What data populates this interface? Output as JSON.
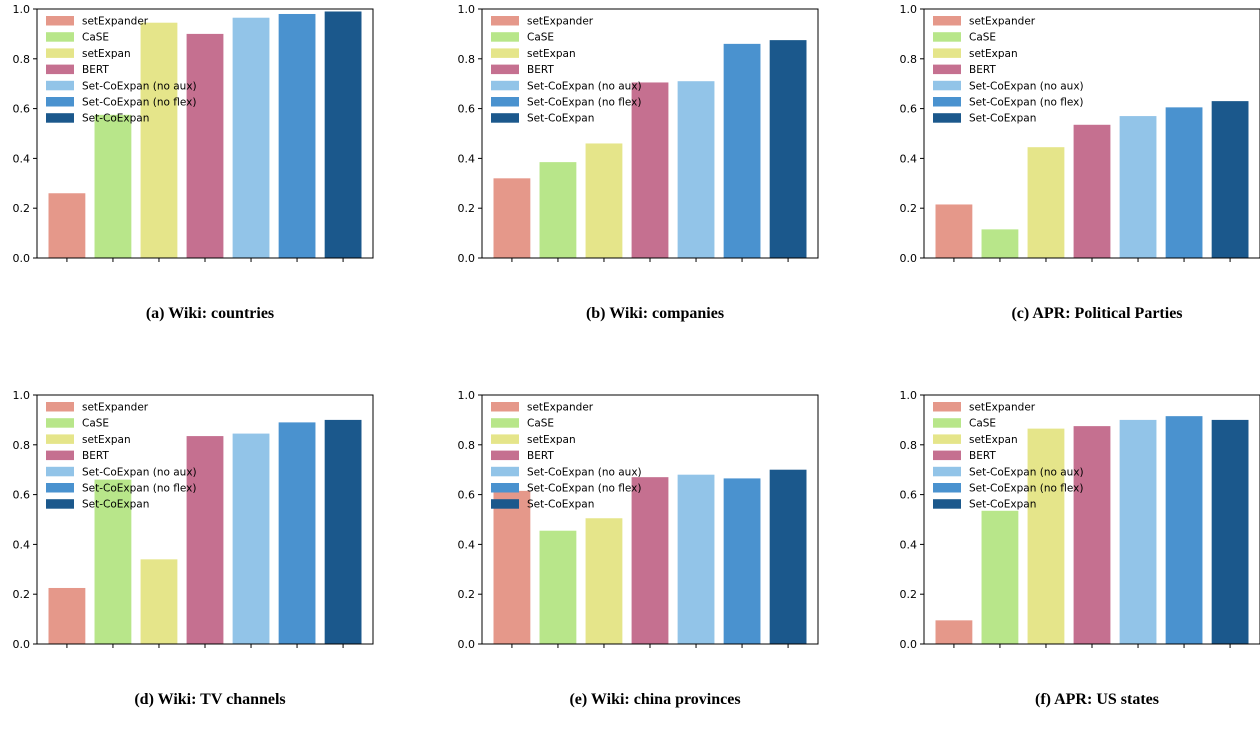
{
  "figure": {
    "series": [
      "setExpander",
      "CaSE",
      "setExpan",
      "BERT",
      "Set-CoExpan (no aux)",
      "Set-CoExpan (no flex)",
      "Set-CoExpan"
    ],
    "colors": [
      "#e5988a",
      "#b8e68a",
      "#e5e58a",
      "#c57090",
      "#92c4e8",
      "#4a92cf",
      "#1b588c"
    ]
  },
  "chart_data": [
    {
      "type": "bar",
      "caption": "(a) Wiki: countries",
      "values": [
        0.26,
        0.575,
        0.945,
        0.9,
        0.965,
        0.98,
        0.99
      ],
      "ylim": [
        0,
        1.0
      ],
      "yticks": [
        "0.0",
        "0.2",
        "0.4",
        "0.6",
        "0.8",
        "1.0"
      ],
      "legend": "top-left",
      "grid": false
    },
    {
      "type": "bar",
      "caption": "(b) Wiki: companies",
      "values": [
        0.32,
        0.385,
        0.46,
        0.705,
        0.71,
        0.86,
        0.875
      ],
      "ylim": [
        0,
        1.0
      ],
      "yticks": [
        "0.0",
        "0.2",
        "0.4",
        "0.6",
        "0.8",
        "1.0"
      ],
      "legend": "top-left",
      "grid": false
    },
    {
      "type": "bar",
      "caption": "(c) APR: Political Parties",
      "values": [
        0.215,
        0.115,
        0.445,
        0.535,
        0.57,
        0.605,
        0.63
      ],
      "ylim": [
        0,
        1.0
      ],
      "yticks": [
        "0.0",
        "0.2",
        "0.4",
        "0.6",
        "0.8",
        "1.0"
      ],
      "legend": "top-left",
      "grid": false
    },
    {
      "type": "bar",
      "caption": "(d) Wiki: TV channels",
      "values": [
        0.225,
        0.66,
        0.34,
        0.835,
        0.845,
        0.89,
        0.9
      ],
      "ylim": [
        0,
        1.0
      ],
      "yticks": [
        "0.0",
        "0.2",
        "0.4",
        "0.6",
        "0.8",
        "1.0"
      ],
      "legend": "top-left",
      "grid": false
    },
    {
      "type": "bar",
      "caption": "(e) Wiki: china provinces",
      "values": [
        0.615,
        0.455,
        0.505,
        0.67,
        0.68,
        0.665,
        0.7
      ],
      "ylim": [
        0,
        1.0
      ],
      "yticks": [
        "0.0",
        "0.2",
        "0.4",
        "0.6",
        "0.8",
        "1.0"
      ],
      "legend": "top-left",
      "grid": false
    },
    {
      "type": "bar",
      "caption": "(f) APR: US states",
      "values": [
        0.095,
        0.535,
        0.865,
        0.875,
        0.9,
        0.915,
        0.9
      ],
      "ylim": [
        0,
        1.0
      ],
      "yticks": [
        "0.0",
        "0.2",
        "0.4",
        "0.6",
        "0.8",
        "1.0"
      ],
      "legend": "top-left",
      "grid": false
    }
  ]
}
